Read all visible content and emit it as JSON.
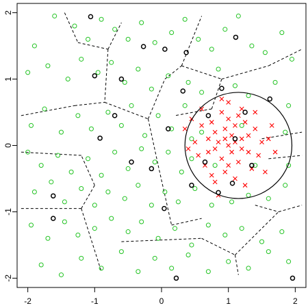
{
  "chart_data": {
    "type": "scatter",
    "xlim": [
      -2.16,
      2.16
    ],
    "ylim": [
      -2.14,
      2.14
    ],
    "xticks": [
      -2,
      -1,
      0,
      1,
      2
    ],
    "yticks": [
      -2,
      -1,
      0,
      1,
      2
    ],
    "series": [
      {
        "color": "#22c322",
        "marker": "circle",
        "x": [
          -1.9,
          -1.6,
          -1.3,
          -1.1,
          -0.9,
          -0.7,
          -0.5,
          -0.3,
          -0.1,
          0.15,
          0.35,
          0.55,
          0.75,
          0.95,
          1.15,
          1.35,
          1.55,
          1.8,
          1.95,
          -2.0,
          -1.7,
          -1.4,
          -1.2,
          -0.95,
          -0.75,
          -0.55,
          -0.35,
          -0.15,
          0.1,
          0.4,
          0.6,
          0.85,
          1.1,
          1.3,
          1.7,
          1.9,
          -1.95,
          -1.75,
          -1.5,
          -1.25,
          -1.05,
          -0.8,
          -0.6,
          -0.45,
          -0.25,
          -0.05,
          0.15,
          0.35,
          0.45,
          1.85,
          -2.0,
          -1.8,
          -1.55,
          -1.35,
          -1.1,
          -0.9,
          -0.7,
          -0.5,
          -0.3,
          -0.1,
          0.1,
          0.3,
          0.45,
          1.9,
          -1.9,
          -1.65,
          -1.45,
          -1.2,
          -1.0,
          -0.8,
          -0.55,
          -0.35,
          -0.15,
          0.05,
          0.25,
          0.5,
          0.75,
          1.05,
          1.3,
          1.6,
          1.85,
          -1.95,
          -1.7,
          -1.45,
          -1.25,
          -1.0,
          -0.75,
          -0.5,
          -0.3,
          -0.05,
          0.2,
          0.45,
          0.7,
          0.95,
          1.2,
          1.5,
          1.8,
          -1.8,
          -1.5,
          -1.2,
          -0.9,
          -0.6,
          -0.35,
          -0.1,
          0.15,
          0.4,
          0.7,
          1.0,
          1.3,
          1.6,
          1.9,
          0.6,
          0.8,
          1.2,
          1.4
        ],
        "values": [
          1.5,
          1.95,
          1.8,
          1.6,
          1.9,
          1.75,
          1.6,
          1.85,
          1.55,
          1.7,
          1.9,
          1.6,
          1.45,
          1.75,
          1.95,
          1.5,
          1.4,
          1.7,
          1.3,
          1.1,
          1.2,
          1.0,
          1.3,
          1.1,
          1.25,
          0.95,
          1.15,
          0.85,
          1.05,
          0.95,
          0.8,
          1.15,
          0.9,
          0.75,
          0.95,
          0.6,
          0.3,
          0.55,
          0.2,
          0.45,
          0.25,
          0.5,
          0.3,
          0.6,
          0.15,
          0.45,
          0.25,
          0.6,
          0.1,
          0.2,
          -0.1,
          -0.3,
          -0.15,
          -0.4,
          -0.2,
          -0.45,
          -0.1,
          -0.35,
          -0.05,
          -0.25,
          -0.1,
          -0.4,
          -0.2,
          -0.3,
          -0.7,
          -0.55,
          -0.85,
          -0.65,
          -0.9,
          -0.7,
          -0.8,
          -0.6,
          -0.9,
          -0.7,
          -0.85,
          -0.65,
          -0.9,
          -0.85,
          -0.75,
          -0.8,
          -0.6,
          -1.2,
          -1.4,
          -1.15,
          -1.35,
          -1.25,
          -1.1,
          -1.3,
          -1.15,
          -1.4,
          -1.25,
          -1.5,
          -1.2,
          -1.35,
          -1.25,
          -1.45,
          -1.3,
          -1.8,
          -1.95,
          -1.7,
          -1.85,
          -1.6,
          -1.9,
          -1.7,
          -1.85,
          -1.65,
          -1.9,
          -1.75,
          -1.85,
          -1.6,
          -1.75,
          0.2,
          -0.3,
          0.3,
          -0.3
        ]
      },
      {
        "color": "#ff0000",
        "marker": "cross",
        "x": [
          1.0,
          0.8,
          1.2,
          0.9,
          1.1,
          0.7,
          1.3,
          1.0,
          0.95,
          0.6,
          1.4,
          0.85,
          1.15,
          1.05,
          0.75,
          1.25,
          0.65,
          1.35,
          0.5,
          1.5,
          0.9,
          1.1,
          0.55,
          1.45,
          1.2,
          0.8,
          0.95,
          1.05,
          0.7,
          1.3,
          0.4,
          1.6,
          1.0,
          0.85,
          0.45,
          1.55,
          1.15,
          0.75,
          1.65,
          0.35,
          0.6,
          1.4,
          1.25,
          0.9,
          1.7,
          1.0,
          1.1,
          0.8,
          1.2,
          0.95
        ],
        "values": [
          0.0,
          0.2,
          0.1,
          -0.2,
          0.3,
          -0.1,
          -0.1,
          0.4,
          -0.4,
          0.3,
          0.25,
          0.05,
          -0.25,
          0.15,
          0.35,
          0.35,
          -0.3,
          -0.35,
          0.05,
          0.05,
          0.5,
          -0.5,
          -0.15,
          -0.15,
          0.55,
          -0.55,
          0.25,
          -0.1,
          0.1,
          0.15,
          -0.05,
          0.1,
          0.65,
          -0.75,
          0.4,
          -0.4,
          0.45,
          -0.45,
          0.3,
          0.25,
          0.55,
          0.5,
          -0.6,
          0.7,
          -0.1,
          -0.3,
          0.05,
          -0.05,
          -0.05,
          0.1
        ]
      },
      {
        "color": "#000000",
        "marker": "circle",
        "x": [
          -1.06,
          1.11,
          -0.27,
          0.37,
          0.9,
          1.62,
          -0.6,
          0.32,
          -0.92,
          -1.62,
          -1.62,
          0.04,
          0.22,
          1.96,
          0.85,
          1.06,
          -0.15,
          0.1,
          -0.45,
          0.7,
          1.1,
          1.35,
          0.65,
          -1.0,
          0.05,
          -0.7,
          1.25,
          0.45
        ],
        "values": [
          1.94,
          1.63,
          1.49,
          1.4,
          0.86,
          0.7,
          1.0,
          0.82,
          0.11,
          -0.76,
          -1.1,
          -0.95,
          -2.0,
          -2.0,
          -0.71,
          -0.57,
          -0.35,
          0.25,
          -0.25,
          0.45,
          0.1,
          -0.3,
          -0.25,
          1.05,
          1.45,
          0.45,
          0.5,
          -0.6
        ]
      }
    ],
    "segments": [
      {
        "x": [
          -1.45,
          -1.25
        ],
        "y": [
          2.0,
          1.55
        ]
      },
      {
        "x": [
          -1.25,
          -0.8
        ],
        "y": [
          1.55,
          1.45
        ]
      },
      {
        "x": [
          -0.8,
          -0.6
        ],
        "y": [
          1.45,
          1.85
        ]
      },
      {
        "x": [
          -0.8,
          -0.85
        ],
        "y": [
          1.45,
          0.65
        ]
      },
      {
        "x": [
          -2.1,
          -1.3
        ],
        "y": [
          0.45,
          0.6
        ]
      },
      {
        "x": [
          -1.3,
          -0.85
        ],
        "y": [
          0.6,
          0.65
        ]
      },
      {
        "x": [
          -0.85,
          -0.2
        ],
        "y": [
          0.65,
          0.4
        ]
      },
      {
        "x": [
          -0.2,
          0.05
        ],
        "y": [
          0.4,
          1.0
        ]
      },
      {
        "x": [
          0.05,
          0.3
        ],
        "y": [
          1.0,
          1.2
        ]
      },
      {
        "x": [
          0.3,
          0.6
        ],
        "y": [
          1.2,
          1.95
        ]
      },
      {
        "x": [
          0.3,
          0.9
        ],
        "y": [
          1.2,
          1.0
        ]
      },
      {
        "x": [
          0.9,
          1.6
        ],
        "y": [
          1.0,
          1.2
        ]
      },
      {
        "x": [
          1.6,
          2.1
        ],
        "y": [
          1.2,
          1.45
        ]
      },
      {
        "x": [
          0.9,
          0.75
        ],
        "y": [
          1.0,
          0.55
        ]
      },
      {
        "x": [
          0.75,
          0.2
        ],
        "y": [
          0.55,
          0.45
        ]
      },
      {
        "x": [
          -0.2,
          -0.05
        ],
        "y": [
          0.4,
          -0.3
        ]
      },
      {
        "x": [
          -2.1,
          -1.2
        ],
        "y": [
          -0.95,
          -0.95
        ]
      },
      {
        "x": [
          -1.2,
          -0.9
        ],
        "y": [
          -0.95,
          -1.9
        ]
      },
      {
        "x": [
          -1.2,
          -1.0
        ],
        "y": [
          -0.95,
          -0.6
        ]
      },
      {
        "x": [
          -1.0,
          -1.2
        ],
        "y": [
          -0.6,
          -0.15
        ]
      },
      {
        "x": [
          -1.2,
          -2.1
        ],
        "y": [
          -0.15,
          -0.1
        ]
      },
      {
        "x": [
          -0.05,
          0.15
        ],
        "y": [
          -0.3,
          -1.2
        ]
      },
      {
        "x": [
          0.15,
          0.6
        ],
        "y": [
          -1.2,
          -1.1
        ]
      },
      {
        "x": [
          -0.6,
          0.6
        ],
        "y": [
          -1.45,
          -1.4
        ]
      },
      {
        "x": [
          0.6,
          1.1
        ],
        "y": [
          -1.4,
          -1.65
        ]
      },
      {
        "x": [
          1.1,
          1.15
        ],
        "y": [
          -1.65,
          -1.95
        ]
      },
      {
        "x": [
          1.1,
          1.75
        ],
        "y": [
          -1.65,
          -1.0
        ]
      },
      {
        "x": [
          1.75,
          2.1
        ],
        "y": [
          -1.0,
          -0.9
        ]
      },
      {
        "x": [
          1.4,
          1.75
        ],
        "y": [
          -0.9,
          -1.0
        ]
      },
      {
        "x": [
          1.5,
          2.1
        ],
        "y": [
          0.1,
          0.2
        ]
      },
      {
        "x": [
          1.6,
          2.1
        ],
        "y": [
          -0.2,
          -0.15
        ]
      }
    ],
    "circle": {
      "x": 1.15,
      "y": 0.0,
      "r": 0.8
    }
  }
}
